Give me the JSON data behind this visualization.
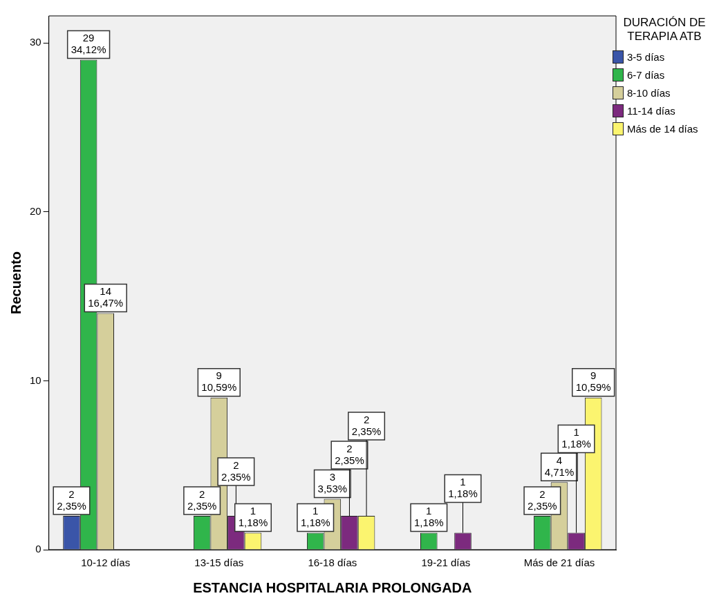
{
  "chart_data": {
    "type": "bar",
    "xlabel": "ESTANCIA HOSPITALARIA PROLONGADA",
    "ylabel": "Recuento",
    "legend_title": "DURACIÓN DE TERAPIA ATB",
    "legend": "top right",
    "grid": false,
    "categories": [
      "10-12 días",
      "13-15 días",
      "16-18 días",
      "19-21 días",
      "Más de 21 días"
    ],
    "ylim": [
      0,
      31.6
    ],
    "yticks": [
      0,
      10,
      20,
      30
    ],
    "series": [
      {
        "name": "3-5 días",
        "color": "#3a55a8",
        "values": [
          2,
          0,
          0,
          0,
          0
        ],
        "value_labels": [
          "2\n2,35%",
          null,
          null,
          null,
          null
        ]
      },
      {
        "name": "6-7 días",
        "color": "#30b54b",
        "values": [
          29,
          2,
          1,
          1,
          2
        ],
        "value_labels": [
          "29\n34,12%",
          "2\n2,35%",
          "1\n1,18%",
          "1\n1,18%",
          "2\n2,35%"
        ]
      },
      {
        "name": "8-10 días",
        "color": "#d5cf9b",
        "values": [
          14,
          9,
          3,
          0,
          4
        ],
        "value_labels": [
          "14\n16,47%",
          "9\n10,59%",
          "3\n3,53%",
          null,
          "4\n4,71%"
        ]
      },
      {
        "name": "11-14 días",
        "color": "#7c2a7e",
        "values": [
          0,
          2,
          2,
          1,
          1
        ],
        "value_labels": [
          null,
          "2\n2,35%",
          "2\n2,35%",
          "1\n1,18%",
          "1\n1,18%"
        ]
      },
      {
        "name": "Más de 14 días",
        "color": "#fbf46f",
        "values": [
          0,
          1,
          2,
          0,
          9
        ],
        "value_labels": [
          null,
          "1\n1,18%",
          "2\n2,35%",
          null,
          "9\n10,59%"
        ]
      }
    ]
  }
}
